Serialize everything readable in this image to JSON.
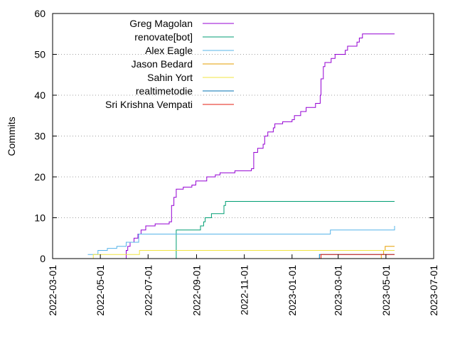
{
  "chart_data": {
    "type": "line",
    "title": "",
    "xlabel": "",
    "ylabel": "Commits",
    "ylim": [
      0,
      60
    ],
    "xlim": [
      "2022-03-01",
      "2023-07-01"
    ],
    "yticks": [
      0,
      10,
      20,
      30,
      40,
      50,
      60
    ],
    "xticks": [
      "2022-03-01",
      "2022-05-01",
      "2022-07-01",
      "2022-09-01",
      "2022-11-01",
      "2023-01-01",
      "2023-03-01",
      "2023-05-01",
      "2023-07-01"
    ],
    "grid": "y-dotted",
    "legend_position": "top-left",
    "series": [
      {
        "name": "Greg Magolan",
        "color": "#9400d3",
        "points": [
          [
            "2022-06-02",
            0
          ],
          [
            "2022-06-03",
            2
          ],
          [
            "2022-06-05",
            3
          ],
          [
            "2022-06-08",
            4
          ],
          [
            "2022-06-12",
            4
          ],
          [
            "2022-06-13",
            5
          ],
          [
            "2022-06-18",
            6
          ],
          [
            "2022-06-22",
            7
          ],
          [
            "2022-06-28",
            8
          ],
          [
            "2022-07-10",
            8.5
          ],
          [
            "2022-07-28",
            9
          ],
          [
            "2022-07-31",
            13
          ],
          [
            "2022-08-03",
            15
          ],
          [
            "2022-08-06",
            17
          ],
          [
            "2022-08-15",
            17.5
          ],
          [
            "2022-08-26",
            18
          ],
          [
            "2022-08-31",
            19
          ],
          [
            "2022-09-12",
            19
          ],
          [
            "2022-09-14",
            20
          ],
          [
            "2022-09-25",
            20.5
          ],
          [
            "2022-10-01",
            21
          ],
          [
            "2022-10-20",
            21.5
          ],
          [
            "2022-11-10",
            22
          ],
          [
            "2022-11-13",
            26
          ],
          [
            "2022-11-18",
            27
          ],
          [
            "2022-11-25",
            28
          ],
          [
            "2022-11-27",
            30
          ],
          [
            "2022-12-01",
            31
          ],
          [
            "2022-12-08",
            32
          ],
          [
            "2022-12-10",
            33
          ],
          [
            "2022-12-20",
            33.5
          ],
          [
            "2023-01-01",
            34
          ],
          [
            "2023-01-04",
            35
          ],
          [
            "2023-01-12",
            36
          ],
          [
            "2023-01-19",
            37
          ],
          [
            "2023-01-31",
            38
          ],
          [
            "2023-02-06",
            40
          ],
          [
            "2023-02-07",
            44
          ],
          [
            "2023-02-10",
            47
          ],
          [
            "2023-02-12",
            48
          ],
          [
            "2023-02-17",
            48
          ],
          [
            "2023-02-20",
            49
          ],
          [
            "2023-02-25",
            50
          ],
          [
            "2023-03-10",
            51
          ],
          [
            "2023-03-13",
            52
          ],
          [
            "2023-03-25",
            53
          ],
          [
            "2023-03-28",
            54
          ],
          [
            "2023-04-01",
            55
          ],
          [
            "2023-05-12",
            55
          ]
        ]
      },
      {
        "name": "renovate[bot]",
        "color": "#009e73",
        "points": [
          [
            "2022-08-06",
            0
          ],
          [
            "2022-08-06",
            7
          ],
          [
            "2022-09-05",
            7
          ],
          [
            "2022-09-06",
            8
          ],
          [
            "2022-09-10",
            9
          ],
          [
            "2022-09-12",
            10
          ],
          [
            "2022-09-20",
            11
          ],
          [
            "2022-10-03",
            11
          ],
          [
            "2022-10-06",
            13
          ],
          [
            "2022-10-08",
            14
          ],
          [
            "2023-05-12",
            14
          ]
        ]
      },
      {
        "name": "Alex Eagle",
        "color": "#56b4e9",
        "points": [
          [
            "2022-04-15",
            1
          ],
          [
            "2022-04-25",
            1
          ],
          [
            "2022-04-28",
            2
          ],
          [
            "2022-05-10",
            2.5
          ],
          [
            "2022-05-22",
            3
          ],
          [
            "2022-06-03",
            4
          ],
          [
            "2022-06-18",
            4
          ],
          [
            "2022-06-19",
            6
          ],
          [
            "2023-02-17",
            6
          ],
          [
            "2023-02-19",
            7
          ],
          [
            "2023-04-30",
            7
          ],
          [
            "2023-05-12",
            8
          ]
        ]
      },
      {
        "name": "Jason Bedard",
        "color": "#e69f00",
        "points": [
          [
            "2023-03-20",
            0
          ],
          [
            "2023-04-25",
            1
          ],
          [
            "2023-04-28",
            2
          ],
          [
            "2023-04-30",
            3
          ],
          [
            "2023-05-12",
            3
          ]
        ]
      },
      {
        "name": "Sahin Yort",
        "color": "#f0e442",
        "points": [
          [
            "2022-04-20",
            0
          ],
          [
            "2022-04-22",
            1
          ],
          [
            "2022-06-19",
            1
          ],
          [
            "2022-06-20",
            2
          ],
          [
            "2023-05-12",
            2
          ]
        ]
      },
      {
        "name": "realtimetodie",
        "color": "#0072b2",
        "points": [
          [
            "2023-02-03",
            0
          ],
          [
            "2023-02-05",
            1
          ],
          [
            "2023-05-12",
            1
          ]
        ]
      },
      {
        "name": "Sri Krishna Vempati",
        "color": "#e51e10",
        "points": [
          [
            "2023-02-06",
            0
          ],
          [
            "2023-02-07",
            1
          ],
          [
            "2023-05-12",
            1
          ]
        ]
      }
    ]
  }
}
